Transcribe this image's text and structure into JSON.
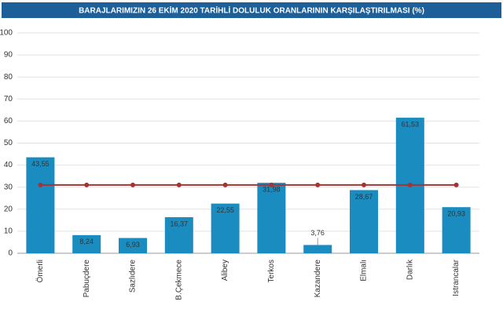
{
  "chart_data": {
    "type": "bar",
    "title": "BARAJLARIMIZIN 26 EKİM 2020 TARİHLİ DOLULUK ORANLARININ KARŞILAŞTIRILMASI (%)",
    "categories": [
      "Ömerli",
      "Pabuçdere",
      "Sazlıdere",
      "B.Çekmece",
      "Alibey",
      "Terkos",
      "Kazandere",
      "Elmalı",
      "Darlık",
      "Istrancalar"
    ],
    "series": [
      {
        "type": "bar",
        "color": "#1a8cc0",
        "values": [
          43.55,
          8.24,
          6.93,
          16.37,
          22.55,
          31.98,
          3.76,
          28.67,
          61.53,
          20.93
        ],
        "value_labels": [
          "43,55",
          "8,24",
          "6,93",
          "16,37",
          "22,55",
          "31,98",
          "3,76",
          "28,67",
          "61,53",
          "20,93"
        ]
      },
      {
        "type": "line",
        "color": "#a83232",
        "values": [
          31,
          31,
          31,
          31,
          31,
          31,
          31,
          31,
          31,
          31
        ]
      }
    ],
    "ylim": [
      0,
      100
    ],
    "yticks": [
      0,
      10,
      20,
      30,
      40,
      50,
      60,
      70,
      80,
      90,
      100
    ],
    "grid": true
  }
}
